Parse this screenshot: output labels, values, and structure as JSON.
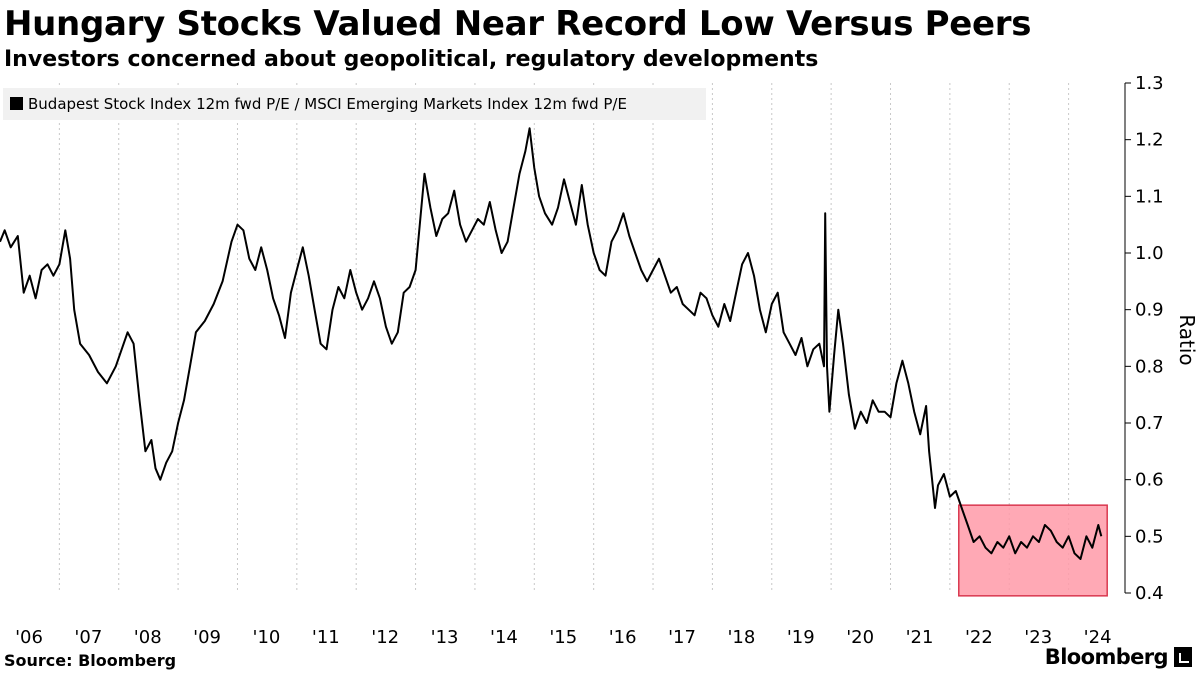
{
  "header": {
    "title": "Hungary Stocks Valued Near Record Low Versus Peers",
    "subtitle": "Investors concerned about geopolitical, regulatory developments"
  },
  "footer": {
    "source": "Source: Bloomberg",
    "brand": "Bloomberg"
  },
  "chart_data": {
    "type": "line",
    "title": "Hungary Stocks Valued Near Record Low Versus Peers",
    "subtitle": "Investors concerned about geopolitical, regulatory developments",
    "ylabel": "Ratio",
    "xlabel": "",
    "ylim": [
      0.4,
      1.3
    ],
    "xlim": [
      2006.0,
      2024.95
    ],
    "y_ticks": [
      0.4,
      0.5,
      0.6,
      0.7,
      0.8,
      0.9,
      1.0,
      1.1,
      1.2,
      1.3
    ],
    "y_tick_labels": [
      "0.4",
      "0.5",
      "0.6",
      "0.7",
      "0.8",
      "0.9",
      "1.0",
      "1.1",
      "1.2",
      "1.3"
    ],
    "x_tick_labels": [
      "'06",
      "'07",
      "'08",
      "'09",
      "'10",
      "'11",
      "'12",
      "'13",
      "'14",
      "'15",
      "'16",
      "'17",
      "'18",
      "'19",
      "'20",
      "'21",
      "'22",
      "'23",
      "'24"
    ],
    "x_tick_years": [
      2006,
      2007,
      2008,
      2009,
      2010,
      2011,
      2012,
      2013,
      2014,
      2015,
      2016,
      2017,
      2018,
      2019,
      2020,
      2021,
      2022,
      2023,
      2024
    ],
    "grid": "vertical dotted",
    "legend": {
      "position": "top-left",
      "entries": [
        "Budapest Stock Index 12m fwd P/E / MSCI Emerging Markets Index 12m fwd P/E"
      ]
    },
    "highlight": {
      "x_range": [
        2022.15,
        2024.65
      ],
      "y_range": [
        0.395,
        0.555
      ],
      "color": "#ff9aa8",
      "border": "#d9384f"
    },
    "series": [
      {
        "name": "Budapest Stock Index 12m fwd P/E / MSCI Emerging Markets Index 12m fwd P/E",
        "color": "#000000",
        "points": [
          [
            2006.0,
            1.02
          ],
          [
            2006.08,
            1.04
          ],
          [
            2006.18,
            1.01
          ],
          [
            2006.3,
            1.03
          ],
          [
            2006.4,
            0.93
          ],
          [
            2006.5,
            0.96
          ],
          [
            2006.6,
            0.92
          ],
          [
            2006.7,
            0.97
          ],
          [
            2006.8,
            0.98
          ],
          [
            2006.9,
            0.96
          ],
          [
            2007.0,
            0.98
          ],
          [
            2007.1,
            1.04
          ],
          [
            2007.18,
            0.99
          ],
          [
            2007.25,
            0.9
          ],
          [
            2007.35,
            0.84
          ],
          [
            2007.5,
            0.82
          ],
          [
            2007.65,
            0.79
          ],
          [
            2007.8,
            0.77
          ],
          [
            2007.95,
            0.8
          ],
          [
            2008.05,
            0.83
          ],
          [
            2008.15,
            0.86
          ],
          [
            2008.25,
            0.84
          ],
          [
            2008.35,
            0.74
          ],
          [
            2008.45,
            0.65
          ],
          [
            2008.55,
            0.67
          ],
          [
            2008.62,
            0.62
          ],
          [
            2008.7,
            0.6
          ],
          [
            2008.8,
            0.63
          ],
          [
            2008.9,
            0.65
          ],
          [
            2009.0,
            0.7
          ],
          [
            2009.1,
            0.74
          ],
          [
            2009.2,
            0.8
          ],
          [
            2009.3,
            0.86
          ],
          [
            2009.45,
            0.88
          ],
          [
            2009.6,
            0.91
          ],
          [
            2009.75,
            0.95
          ],
          [
            2009.9,
            1.02
          ],
          [
            2010.0,
            1.05
          ],
          [
            2010.1,
            1.04
          ],
          [
            2010.2,
            0.99
          ],
          [
            2010.3,
            0.97
          ],
          [
            2010.4,
            1.01
          ],
          [
            2010.5,
            0.97
          ],
          [
            2010.6,
            0.92
          ],
          [
            2010.7,
            0.89
          ],
          [
            2010.8,
            0.85
          ],
          [
            2010.9,
            0.93
          ],
          [
            2011.0,
            0.97
          ],
          [
            2011.1,
            1.01
          ],
          [
            2011.2,
            0.96
          ],
          [
            2011.3,
            0.9
          ],
          [
            2011.4,
            0.84
          ],
          [
            2011.5,
            0.83
          ],
          [
            2011.6,
            0.9
          ],
          [
            2011.7,
            0.94
          ],
          [
            2011.8,
            0.92
          ],
          [
            2011.9,
            0.97
          ],
          [
            2012.0,
            0.93
          ],
          [
            2012.1,
            0.9
          ],
          [
            2012.2,
            0.92
          ],
          [
            2012.3,
            0.95
          ],
          [
            2012.4,
            0.92
          ],
          [
            2012.5,
            0.87
          ],
          [
            2012.6,
            0.84
          ],
          [
            2012.7,
            0.86
          ],
          [
            2012.8,
            0.93
          ],
          [
            2012.9,
            0.94
          ],
          [
            2013.0,
            0.97
          ],
          [
            2013.08,
            1.06
          ],
          [
            2013.15,
            1.14
          ],
          [
            2013.25,
            1.08
          ],
          [
            2013.35,
            1.03
          ],
          [
            2013.45,
            1.06
          ],
          [
            2013.55,
            1.07
          ],
          [
            2013.65,
            1.11
          ],
          [
            2013.75,
            1.05
          ],
          [
            2013.85,
            1.02
          ],
          [
            2013.95,
            1.04
          ],
          [
            2014.05,
            1.06
          ],
          [
            2014.15,
            1.05
          ],
          [
            2014.25,
            1.09
          ],
          [
            2014.35,
            1.04
          ],
          [
            2014.45,
            1.0
          ],
          [
            2014.55,
            1.02
          ],
          [
            2014.65,
            1.08
          ],
          [
            2014.75,
            1.14
          ],
          [
            2014.85,
            1.18
          ],
          [
            2014.92,
            1.22
          ],
          [
            2015.0,
            1.15
          ],
          [
            2015.08,
            1.1
          ],
          [
            2015.18,
            1.07
          ],
          [
            2015.3,
            1.05
          ],
          [
            2015.4,
            1.08
          ],
          [
            2015.5,
            1.13
          ],
          [
            2015.6,
            1.09
          ],
          [
            2015.7,
            1.05
          ],
          [
            2015.8,
            1.12
          ],
          [
            2015.9,
            1.05
          ],
          [
            2016.0,
            1.0
          ],
          [
            2016.1,
            0.97
          ],
          [
            2016.2,
            0.96
          ],
          [
            2016.3,
            1.02
          ],
          [
            2016.4,
            1.04
          ],
          [
            2016.5,
            1.07
          ],
          [
            2016.6,
            1.03
          ],
          [
            2016.7,
            1.0
          ],
          [
            2016.8,
            0.97
          ],
          [
            2016.9,
            0.95
          ],
          [
            2017.0,
            0.97
          ],
          [
            2017.1,
            0.99
          ],
          [
            2017.2,
            0.96
          ],
          [
            2017.3,
            0.93
          ],
          [
            2017.4,
            0.94
          ],
          [
            2017.5,
            0.91
          ],
          [
            2017.6,
            0.9
          ],
          [
            2017.7,
            0.89
          ],
          [
            2017.8,
            0.93
          ],
          [
            2017.9,
            0.92
          ],
          [
            2018.0,
            0.89
          ],
          [
            2018.1,
            0.87
          ],
          [
            2018.2,
            0.91
          ],
          [
            2018.3,
            0.88
          ],
          [
            2018.4,
            0.93
          ],
          [
            2018.5,
            0.98
          ],
          [
            2018.6,
            1.0
          ],
          [
            2018.7,
            0.96
          ],
          [
            2018.8,
            0.9
          ],
          [
            2018.9,
            0.86
          ],
          [
            2019.0,
            0.91
          ],
          [
            2019.1,
            0.93
          ],
          [
            2019.2,
            0.86
          ],
          [
            2019.3,
            0.84
          ],
          [
            2019.4,
            0.82
          ],
          [
            2019.5,
            0.85
          ],
          [
            2019.6,
            0.8
          ],
          [
            2019.7,
            0.83
          ],
          [
            2019.8,
            0.84
          ],
          [
            2019.88,
            0.8
          ],
          [
            2019.9,
            1.07
          ],
          [
            2019.93,
            0.8
          ],
          [
            2019.97,
            0.72
          ],
          [
            2020.05,
            0.82
          ],
          [
            2020.12,
            0.9
          ],
          [
            2020.2,
            0.84
          ],
          [
            2020.3,
            0.75
          ],
          [
            2020.4,
            0.69
          ],
          [
            2020.5,
            0.72
          ],
          [
            2020.6,
            0.7
          ],
          [
            2020.7,
            0.74
          ],
          [
            2020.8,
            0.72
          ],
          [
            2020.9,
            0.72
          ],
          [
            2021.0,
            0.71
          ],
          [
            2021.1,
            0.77
          ],
          [
            2021.2,
            0.81
          ],
          [
            2021.3,
            0.77
          ],
          [
            2021.4,
            0.72
          ],
          [
            2021.5,
            0.68
          ],
          [
            2021.6,
            0.73
          ],
          [
            2021.65,
            0.65
          ],
          [
            2021.7,
            0.6
          ],
          [
            2021.75,
            0.55
          ],
          [
            2021.8,
            0.59
          ],
          [
            2021.9,
            0.61
          ],
          [
            2022.0,
            0.57
          ],
          [
            2022.1,
            0.58
          ],
          [
            2022.2,
            0.55
          ],
          [
            2022.3,
            0.52
          ],
          [
            2022.4,
            0.49
          ],
          [
            2022.5,
            0.5
          ],
          [
            2022.6,
            0.48
          ],
          [
            2022.7,
            0.47
          ],
          [
            2022.8,
            0.49
          ],
          [
            2022.9,
            0.48
          ],
          [
            2023.0,
            0.5
          ],
          [
            2023.1,
            0.47
          ],
          [
            2023.2,
            0.49
          ],
          [
            2023.3,
            0.48
          ],
          [
            2023.4,
            0.5
          ],
          [
            2023.5,
            0.49
          ],
          [
            2023.6,
            0.52
          ],
          [
            2023.7,
            0.51
          ],
          [
            2023.8,
            0.49
          ],
          [
            2023.9,
            0.48
          ],
          [
            2024.0,
            0.5
          ],
          [
            2024.1,
            0.47
          ],
          [
            2024.2,
            0.46
          ],
          [
            2024.3,
            0.5
          ],
          [
            2024.4,
            0.48
          ],
          [
            2024.45,
            0.5
          ],
          [
            2024.5,
            0.52
          ],
          [
            2024.55,
            0.5
          ]
        ]
      }
    ]
  }
}
